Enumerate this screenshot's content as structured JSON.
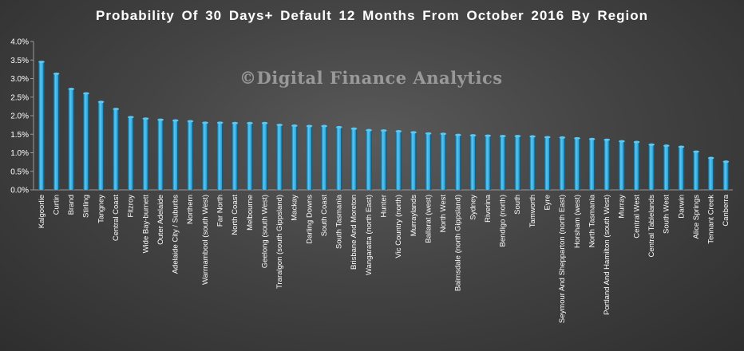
{
  "title": "Probability  Of 30 Days+ Default 12 Months From October 2016 By Region",
  "watermark": "©Digital Finance Analytics",
  "colors": {
    "bar": "#1f9fd8",
    "bar_dark": "#0d5f86",
    "bar_light": "#5cc8f2",
    "text": "#ffffff"
  },
  "chart_data": {
    "type": "bar",
    "title": "Probability  Of 30 Days+ Default 12 Months From October 2016 By Region",
    "xlabel": "",
    "ylabel": "",
    "ylim": [
      0,
      4.0
    ],
    "yticks": [
      "0.0%",
      "0.5%",
      "1.0%",
      "1.5%",
      "2.0%",
      "2.5%",
      "3.0%",
      "3.5%",
      "4.0%"
    ],
    "grid": false,
    "categories": [
      "Kalgoorlie",
      "Curtin",
      "Brand",
      "Stirling",
      "Tangney",
      "Central Coast",
      "Fitzroy",
      "Wide Bay-burnett",
      "Outer Adelaide",
      "Adelaide City / Suburbs",
      "Northern",
      "Warrnambool (south West)",
      "Far North",
      "North Coast",
      "Melbourne",
      "Geelong (south West)",
      "Traralgon (south Gippsland)",
      "Mackay",
      "Darling Downs",
      "South Coast",
      "South Tasmania",
      "Brisbane And Moreton",
      "Wangaratta (north East)",
      "Hunter",
      "Vic Country (north)",
      "Murraylands",
      "Ballarat (west)",
      "North West",
      "Bairnsdale (north Gippsland)",
      "Sydney",
      "Riverina",
      "Bendigo (north)",
      "South",
      "Tamworth",
      "Eyre",
      "Seymour And Shepparton (north East)",
      "Horsham (west)",
      "North Tasmania",
      "Portland And Hamilton (south West)",
      "Murray",
      "Central West",
      "Central Tablelands",
      "South West",
      "Darwin",
      "Alice Springs",
      "Tennant Creek",
      "Canberra"
    ],
    "values": [
      3.45,
      3.13,
      2.72,
      2.6,
      2.37,
      2.18,
      1.96,
      1.92,
      1.89,
      1.87,
      1.85,
      1.81,
      1.81,
      1.8,
      1.8,
      1.8,
      1.75,
      1.73,
      1.72,
      1.72,
      1.69,
      1.65,
      1.61,
      1.6,
      1.58,
      1.55,
      1.52,
      1.51,
      1.48,
      1.47,
      1.46,
      1.45,
      1.45,
      1.44,
      1.42,
      1.41,
      1.39,
      1.37,
      1.35,
      1.31,
      1.29,
      1.22,
      1.19,
      1.16,
      1.03,
      0.86,
      0.76
    ]
  }
}
